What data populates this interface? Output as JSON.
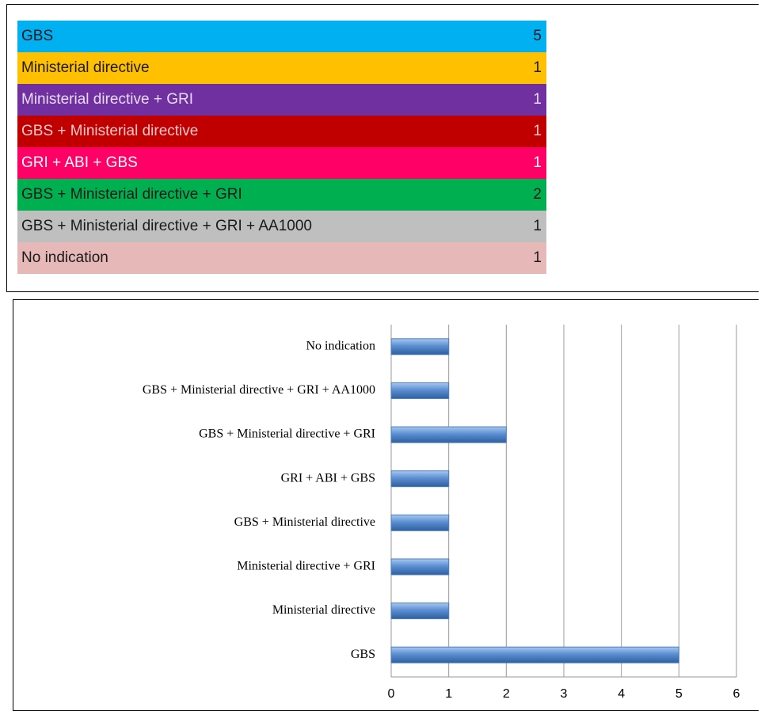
{
  "table": {
    "rows": [
      {
        "label": "GBS",
        "value": "5",
        "color": "#00b0f0",
        "text_color": "#1a1a1a"
      },
      {
        "label": "Ministerial directive",
        "value": "1",
        "color": "#ffc000",
        "text_color": "#1a1a1a"
      },
      {
        "label": "Ministerial directive + GRI",
        "value": "1",
        "color": "#7030a0",
        "text_color": "#e8dcf2"
      },
      {
        "label": "GBS + Ministerial directive",
        "value": "1",
        "color": "#c00000",
        "text_color": "#f6c8c8"
      },
      {
        "label": "GRI + ABI + GBS",
        "value": "1",
        "color": "#ff0066",
        "text_color": "#ffffff"
      },
      {
        "label": "GBS + Ministerial directive + GRI",
        "value": "2",
        "color": "#00b050",
        "text_color": "#1a1a1a"
      },
      {
        "label": "GBS + Ministerial directive + GRI + AA1000",
        "value": "1",
        "color": "#bfbfbf",
        "text_color": "#1a1a1a"
      },
      {
        "label": "No indication",
        "value": "1",
        "color": "#e6b8b7",
        "text_color": "#1a1a1a"
      }
    ]
  },
  "chart_data": {
    "type": "hbar",
    "categories": [
      "GBS",
      "Ministerial directive",
      "Ministerial directive + GRI",
      "GBS + Ministerial directive",
      "GRI + ABI + GBS",
      "GBS + Ministerial directive + GRI",
      "GBS + Ministerial directive + GRI + AA1000",
      "No indication"
    ],
    "values": [
      5,
      1,
      1,
      1,
      1,
      2,
      1,
      1
    ],
    "color": "#4a7ebf",
    "xlim": [
      0,
      6
    ],
    "xticks": [
      0,
      1,
      2,
      3,
      4,
      5,
      6
    ],
    "grid": true
  }
}
